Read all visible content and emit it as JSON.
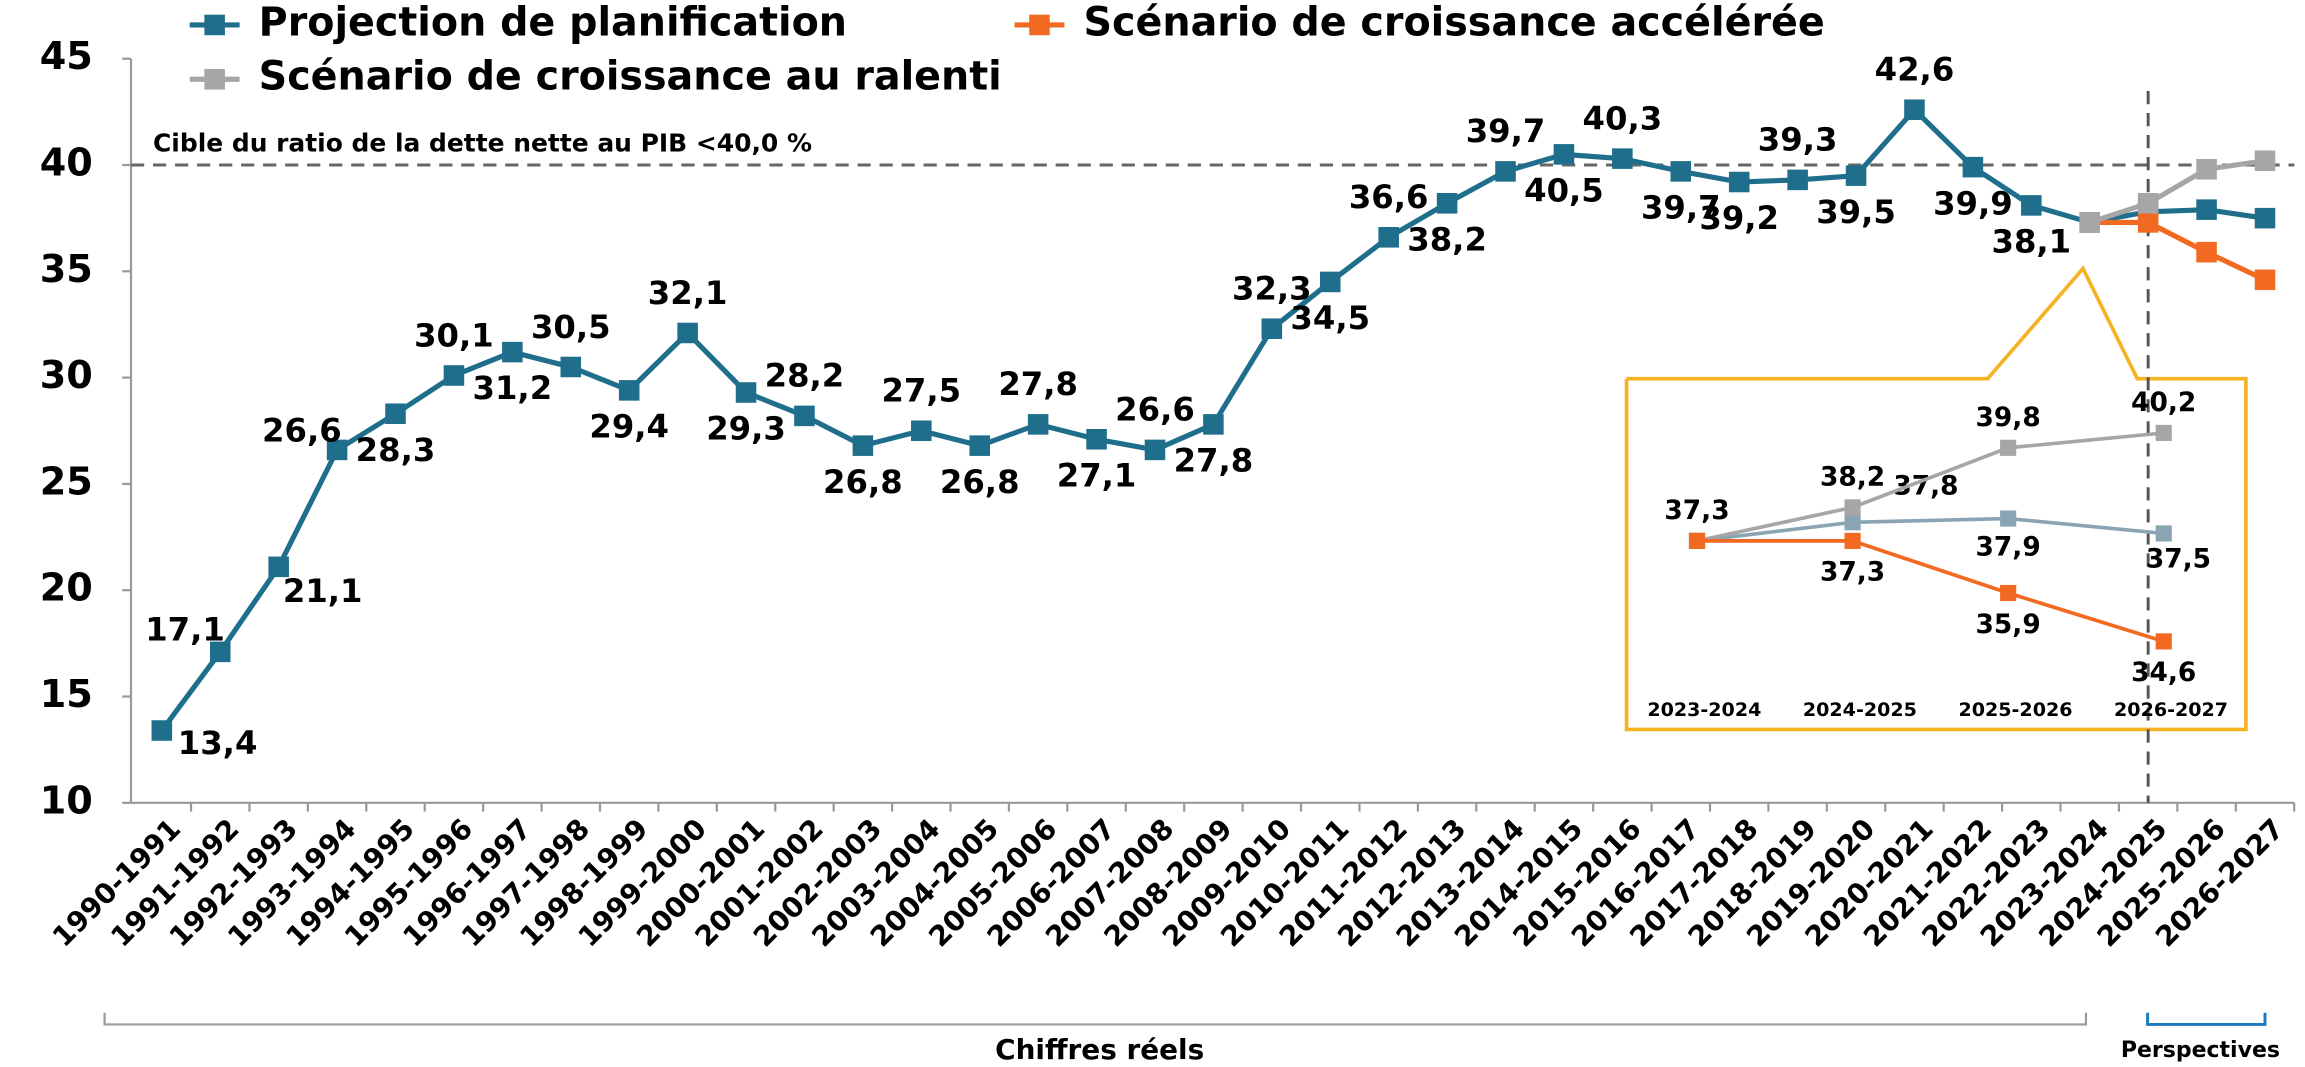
{
  "chart_data": [
    {
      "type": "line",
      "categories": [
        "1990-1991",
        "1991-1992",
        "1992-1993",
        "1993-1994",
        "1994-1995",
        "1995-1996",
        "1996-1997",
        "1997-1998",
        "1998-1999",
        "1999-2000",
        "2000-2001",
        "2001-2002",
        "2002-2003",
        "2003-2004",
        "2004-2005",
        "2005-2006",
        "2006-2007",
        "2007-2008",
        "2008-2009",
        "2009-2010",
        "2010-2011",
        "2011-2012",
        "2012-2013",
        "2013-2014",
        "2014-2015",
        "2015-2016",
        "2016-2017",
        "2017-2018",
        "2018-2019",
        "2019-2020",
        "2020-2021",
        "2021-2022",
        "2022-2023",
        "2023-2024",
        "2024-2025",
        "2025-2026",
        "2026-2027"
      ],
      "series": [
        {
          "name": "Projection de planification",
          "color": "#1f6e8c",
          "values": [
            13.4,
            17.1,
            21.1,
            26.6,
            28.3,
            30.1,
            31.2,
            30.5,
            29.4,
            32.1,
            29.3,
            28.2,
            26.8,
            27.5,
            26.8,
            27.8,
            27.1,
            26.6,
            27.8,
            32.3,
            34.5,
            36.6,
            38.2,
            39.7,
            40.5,
            40.3,
            39.7,
            39.2,
            39.3,
            39.5,
            42.6,
            39.9,
            38.1,
            37.3,
            37.8,
            37.9,
            37.5
          ],
          "value_labels": [
            "13,4",
            "17,1",
            "21,1",
            "26,6",
            "28,3",
            "30,1",
            "31,2",
            "30,5",
            "29,4",
            "32,1",
            "29,3",
            "28,2",
            "26,8",
            "27,5",
            "26,8",
            "27,8",
            "27,1",
            "26,6",
            "27,8",
            "32,3",
            "34,5",
            "36,6",
            "38,2",
            "39,7",
            "40,5",
            "40,3",
            "39,7",
            "39,2",
            "39,3",
            "39,5",
            "42,6",
            "39,9",
            "38,1",
            null,
            null,
            null,
            null
          ]
        },
        {
          "name": "Scénario de croissance accélérée",
          "color": "#f26a21",
          "values": [
            null,
            null,
            null,
            null,
            null,
            null,
            null,
            null,
            null,
            null,
            null,
            null,
            null,
            null,
            null,
            null,
            null,
            null,
            null,
            null,
            null,
            null,
            null,
            null,
            null,
            null,
            null,
            null,
            null,
            null,
            null,
            null,
            null,
            37.3,
            37.3,
            35.9,
            34.6
          ]
        },
        {
          "name": "Scénario de croissance au ralenti",
          "color": "#a6a6a6",
          "values": [
            null,
            null,
            null,
            null,
            null,
            null,
            null,
            null,
            null,
            null,
            null,
            null,
            null,
            null,
            null,
            null,
            null,
            null,
            null,
            null,
            null,
            null,
            null,
            null,
            null,
            null,
            null,
            null,
            null,
            null,
            null,
            null,
            null,
            37.3,
            38.2,
            39.8,
            40.2
          ]
        }
      ],
      "ylim": [
        10,
        45
      ],
      "yticks": [
        10,
        15,
        20,
        25,
        30,
        35,
        40,
        45
      ],
      "grid": false,
      "target": {
        "label": "Cible du ratio de la dette nette au PIB <40,0 %",
        "value": 40
      },
      "periods": [
        "Chiffres réels",
        "Perspectives"
      ]
    },
    {
      "type": "line",
      "categories": [
        "2023-2024",
        "2024-2025",
        "2025-2026",
        "2026-2027"
      ],
      "series": [
        {
          "color": "#8aa4b4",
          "values": [
            37.3,
            37.8,
            37.9,
            37.5
          ],
          "value_labels": [
            "37,3",
            "37,8",
            "37,9",
            "37,5"
          ]
        },
        {
          "color": "#a6a6a6",
          "values": [
            37.3,
            38.2,
            39.8,
            40.2
          ],
          "value_labels": [
            null,
            "38,2",
            "39,8",
            "40,2"
          ]
        },
        {
          "color": "#f26a21",
          "values": [
            37.3,
            37.3,
            35.9,
            34.6
          ],
          "value_labels": [
            null,
            "37,3",
            "35,9",
            "34,6"
          ]
        }
      ],
      "ylim": [
        33.3,
        41.5
      ]
    }
  ]
}
